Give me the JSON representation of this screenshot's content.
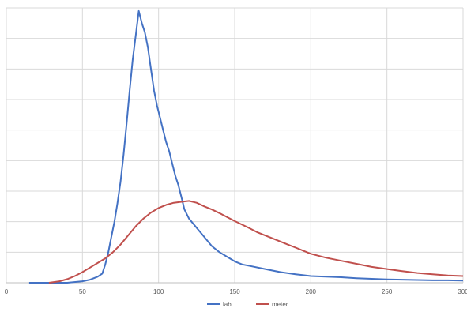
{
  "chart_data": {
    "type": "line",
    "title": "",
    "xlabel": "",
    "ylabel": "",
    "xlim": [
      0,
      300
    ],
    "ylim": [
      0,
      9
    ],
    "x_ticks": [
      0,
      50,
      100,
      150,
      200,
      250,
      300
    ],
    "x_tick_labels": [
      "0",
      "50",
      "100",
      "150",
      "200",
      "250",
      "300"
    ],
    "y_grid_lines": 9,
    "grid": true,
    "y_tick_labels_visible": false,
    "legend": "bottom",
    "series": [
      {
        "name": "lab",
        "color": "#4472C4",
        "points": [
          [
            15,
            0
          ],
          [
            30,
            0
          ],
          [
            40,
            0
          ],
          [
            50,
            0.05
          ],
          [
            55,
            0.1
          ],
          [
            60,
            0.2
          ],
          [
            63,
            0.3
          ],
          [
            65,
            0.6
          ],
          [
            67,
            1.0
          ],
          [
            69,
            1.5
          ],
          [
            71,
            2.0
          ],
          [
            73,
            2.6
          ],
          [
            75,
            3.3
          ],
          [
            77,
            4.2
          ],
          [
            79,
            5.2
          ],
          [
            81,
            6.3
          ],
          [
            83,
            7.3
          ],
          [
            85,
            8.1
          ],
          [
            87,
            8.9
          ],
          [
            89,
            8.5
          ],
          [
            91,
            8.2
          ],
          [
            93,
            7.7
          ],
          [
            95,
            7.0
          ],
          [
            97,
            6.3
          ],
          [
            99,
            5.8
          ],
          [
            101,
            5.4
          ],
          [
            103,
            5.0
          ],
          [
            105,
            4.6
          ],
          [
            107,
            4.3
          ],
          [
            109,
            3.9
          ],
          [
            111,
            3.5
          ],
          [
            113,
            3.2
          ],
          [
            115,
            2.8
          ],
          [
            117,
            2.4
          ],
          [
            120,
            2.1
          ],
          [
            125,
            1.8
          ],
          [
            130,
            1.5
          ],
          [
            135,
            1.2
          ],
          [
            140,
            1.0
          ],
          [
            145,
            0.85
          ],
          [
            150,
            0.7
          ],
          [
            155,
            0.6
          ],
          [
            160,
            0.55
          ],
          [
            170,
            0.45
          ],
          [
            180,
            0.35
          ],
          [
            190,
            0.28
          ],
          [
            200,
            0.22
          ],
          [
            210,
            0.2
          ],
          [
            220,
            0.18
          ],
          [
            230,
            0.15
          ],
          [
            240,
            0.13
          ],
          [
            250,
            0.11
          ],
          [
            260,
            0.1
          ],
          [
            270,
            0.09
          ],
          [
            280,
            0.08
          ],
          [
            290,
            0.08
          ],
          [
            300,
            0.07
          ]
        ]
      },
      {
        "name": "meter",
        "color": "#C0504D",
        "points": [
          [
            28,
            0
          ],
          [
            35,
            0.05
          ],
          [
            40,
            0.12
          ],
          [
            45,
            0.22
          ],
          [
            50,
            0.35
          ],
          [
            55,
            0.5
          ],
          [
            60,
            0.65
          ],
          [
            65,
            0.8
          ],
          [
            70,
            1.0
          ],
          [
            75,
            1.25
          ],
          [
            80,
            1.55
          ],
          [
            85,
            1.85
          ],
          [
            90,
            2.1
          ],
          [
            95,
            2.3
          ],
          [
            100,
            2.45
          ],
          [
            105,
            2.55
          ],
          [
            110,
            2.62
          ],
          [
            115,
            2.65
          ],
          [
            120,
            2.68
          ],
          [
            125,
            2.62
          ],
          [
            130,
            2.5
          ],
          [
            135,
            2.4
          ],
          [
            140,
            2.28
          ],
          [
            145,
            2.15
          ],
          [
            150,
            2.02
          ],
          [
            155,
            1.9
          ],
          [
            160,
            1.78
          ],
          [
            165,
            1.65
          ],
          [
            170,
            1.55
          ],
          [
            175,
            1.45
          ],
          [
            180,
            1.35
          ],
          [
            185,
            1.25
          ],
          [
            190,
            1.15
          ],
          [
            195,
            1.05
          ],
          [
            200,
            0.95
          ],
          [
            210,
            0.82
          ],
          [
            220,
            0.72
          ],
          [
            230,
            0.62
          ],
          [
            240,
            0.52
          ],
          [
            250,
            0.45
          ],
          [
            260,
            0.38
          ],
          [
            270,
            0.32
          ],
          [
            280,
            0.28
          ],
          [
            290,
            0.24
          ],
          [
            300,
            0.22
          ]
        ]
      }
    ]
  }
}
